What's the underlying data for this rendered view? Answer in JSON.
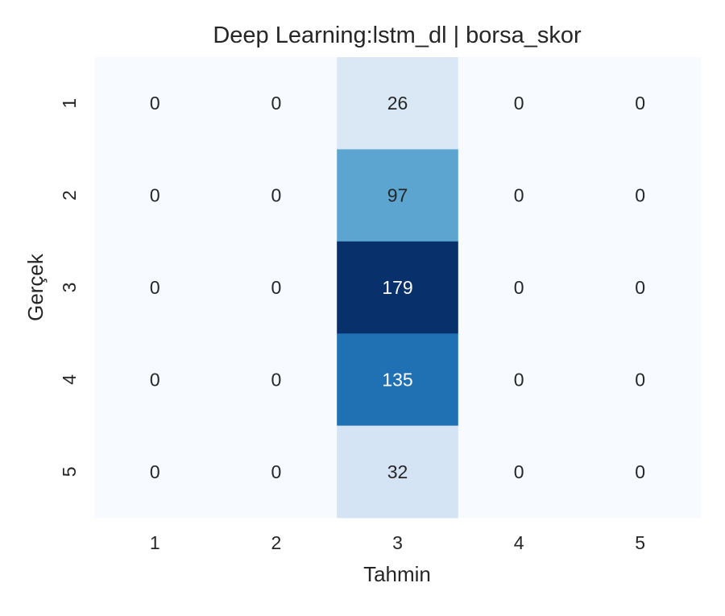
{
  "chart_data": {
    "type": "heatmap",
    "title": "Deep Learning:lstm_dl | borsa_skor",
    "xlabel": "Tahmin",
    "ylabel": "Gerçek",
    "x_categories": [
      "1",
      "2",
      "3",
      "4",
      "5"
    ],
    "y_categories": [
      "1",
      "2",
      "3",
      "4",
      "5"
    ],
    "values": [
      [
        0,
        0,
        26,
        0,
        0
      ],
      [
        0,
        0,
        97,
        0,
        0
      ],
      [
        0,
        0,
        179,
        0,
        0
      ],
      [
        0,
        0,
        135,
        0,
        0
      ],
      [
        0,
        0,
        32,
        0,
        0
      ]
    ],
    "value_range": [
      0,
      179
    ],
    "colormap": "Blues",
    "colorbar": false,
    "grid": false
  },
  "colors": {
    "cmap_low": "#f7fbff",
    "cmap_high": "#08306b",
    "text_dark": "#262626",
    "text_light": "#ffffff"
  }
}
